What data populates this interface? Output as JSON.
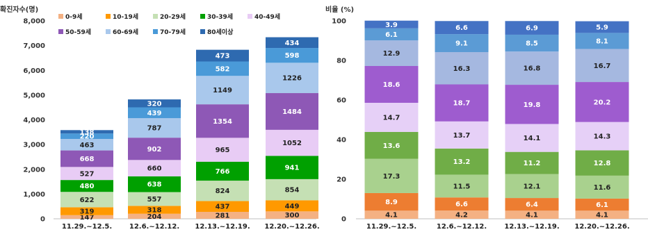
{
  "chart_data": [
    {
      "type": "bar",
      "stacked": true,
      "ylabel": "확진자수(명)",
      "ylim": [
        0,
        8000
      ],
      "yticks": [
        0,
        1000,
        2000,
        3000,
        4000,
        5000,
        6000,
        7000,
        8000
      ],
      "ytick_labels": [
        "0",
        "1,000",
        "2,000",
        "3,000",
        "4,000",
        "5,000",
        "6,000",
        "7,000",
        "8,000"
      ],
      "categories": [
        "11.29.~12.5.",
        "12.6.~12.12.",
        "12.13.~12.19.",
        "12.20.~12.26."
      ],
      "legend_position": "top-left",
      "grid": false,
      "series": [
        {
          "name": "0-9세",
          "color": "#f4b183",
          "values": [
            147,
            204,
            281,
            300
          ]
        },
        {
          "name": "10-19세",
          "color": "#ff9900",
          "values": [
            319,
            318,
            437,
            449
          ]
        },
        {
          "name": "20-29세",
          "color": "#c5e0b4",
          "values": [
            622,
            557,
            824,
            854
          ]
        },
        {
          "name": "30-39세",
          "color": "#00a000",
          "values": [
            480,
            638,
            766,
            941
          ]
        },
        {
          "name": "40-49세",
          "color": "#e8ccf5",
          "values": [
            527,
            660,
            965,
            1052
          ]
        },
        {
          "name": "50-59세",
          "color": "#8e58b6",
          "values": [
            668,
            902,
            1354,
            1484
          ]
        },
        {
          "name": "60-69세",
          "color": "#a9c8ec",
          "values": [
            463,
            787,
            1149,
            1226
          ]
        },
        {
          "name": "70-79세",
          "color": "#4a9ad8",
          "values": [
            220,
            439,
            582,
            598
          ]
        },
        {
          "name": "80세이상",
          "color": "#2e6ab0",
          "values": [
            138,
            320,
            473,
            434
          ]
        }
      ]
    },
    {
      "type": "bar",
      "stacked": true,
      "ylabel": "비율 (%)",
      "ylim": [
        0,
        100
      ],
      "yticks": [
        0,
        20,
        40,
        60,
        80,
        100
      ],
      "ytick_labels": [
        "0",
        "20",
        "40",
        "60",
        "80",
        "100"
      ],
      "categories": [
        "11.29.~12.5.",
        "12.6.~12.12.",
        "12.13.~12.19.",
        "12.20.~12.26."
      ],
      "grid": false,
      "series": [
        {
          "name": "0-9세",
          "color": "#f4b183",
          "values": [
            4.1,
            4.2,
            4.1,
            4.1
          ]
        },
        {
          "name": "10-19세",
          "color": "#ed7d31",
          "values": [
            8.9,
            6.6,
            6.4,
            6.1
          ]
        },
        {
          "name": "20-29세",
          "color": "#a9d18e",
          "values": [
            17.3,
            11.5,
            12.1,
            11.6
          ]
        },
        {
          "name": "30-39세",
          "color": "#70ad47",
          "values": [
            13.6,
            13.2,
            11.2,
            12.8
          ]
        },
        {
          "name": "40-49세",
          "color": "#e6d0f7",
          "values": [
            14.7,
            13.7,
            14.1,
            14.3
          ]
        },
        {
          "name": "50-59세",
          "color": "#9e5ccf",
          "values": [
            18.6,
            18.7,
            19.8,
            20.2
          ]
        },
        {
          "name": "60-69세",
          "color": "#a5b8e0",
          "values": [
            12.9,
            16.3,
            16.8,
            16.7
          ]
        },
        {
          "name": "70-79세",
          "color": "#5b9bd5",
          "values": [
            6.1,
            9.1,
            8.5,
            8.1
          ]
        },
        {
          "name": "80세이상",
          "color": "#4472c4",
          "values": [
            3.9,
            6.6,
            6.9,
            5.9
          ]
        }
      ]
    }
  ]
}
